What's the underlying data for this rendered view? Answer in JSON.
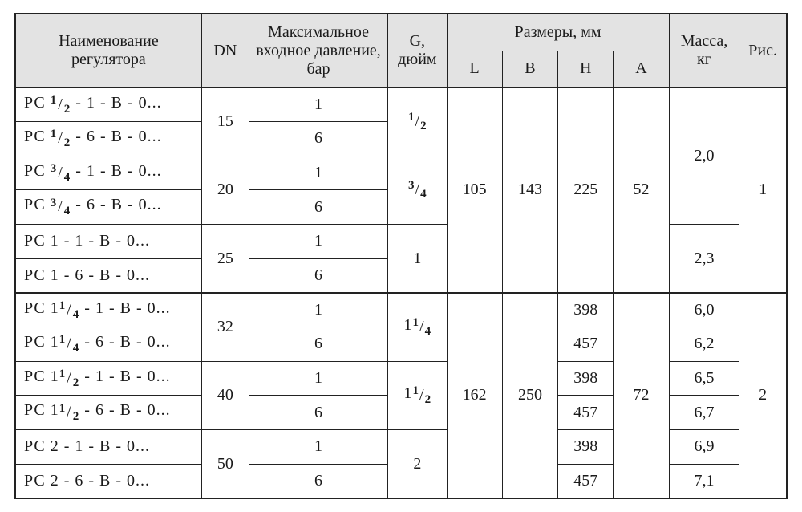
{
  "header": {
    "name": "Наименование регулятора",
    "dn": "DN",
    "pmax": "Максимальное входное давление, бар",
    "g": "G, дюйм",
    "dims_group": "Размеры, мм",
    "L": "L",
    "B": "B",
    "H": "H",
    "A": "A",
    "mass": "Масса, кг",
    "fig": "Рис."
  },
  "style": {
    "header_bg": "#e3e3e3",
    "border_color": "#222222",
    "font_family": "Times New Roman",
    "base_font_size_pt": 15
  },
  "group1": {
    "L": "105",
    "B": "143",
    "H": "225",
    "A": "52",
    "fig": "1",
    "mass_a": "2,0",
    "mass_b": "2,3",
    "rows": [
      {
        "name_html": "РС <frac>1/2</frac> - 1 - В - 0...",
        "pmax": "1"
      },
      {
        "name_html": "РС <frac>1/2</frac> - 6 - В - 0...",
        "pmax": "6"
      },
      {
        "name_html": "РС <frac>3/4</frac> - 1 - В - 0...",
        "pmax": "1"
      },
      {
        "name_html": "РС <frac>3/4</frac> - 6 - В - 0...",
        "pmax": "6"
      },
      {
        "name_html": "РС 1 - 1 - В - 0...",
        "pmax": "1"
      },
      {
        "name_html": "РС 1 - 6 - В - 0...",
        "pmax": "6"
      }
    ],
    "dn": [
      "15",
      "20",
      "25"
    ],
    "g": [
      "1/2",
      "3/4",
      "1"
    ]
  },
  "group2": {
    "L": "162",
    "B": "250",
    "A": "72",
    "fig": "2",
    "rows": [
      {
        "name_html": "РС 1<frac>1/4</frac> - 1 - В - 0...",
        "pmax": "1",
        "H": "398",
        "mass": "6,0"
      },
      {
        "name_html": "РС 1<frac>1/4</frac> - 6 - В - 0...",
        "pmax": "6",
        "H": "457",
        "mass": "6,2"
      },
      {
        "name_html": "РС 1<frac>1/2</frac> - 1 - В - 0...",
        "pmax": "1",
        "H": "398",
        "mass": "6,5"
      },
      {
        "name_html": "РС 1<frac>1/2</frac> - 6 - В - 0...",
        "pmax": "6",
        "H": "457",
        "mass": "6,7"
      },
      {
        "name_html": "РС 2 - 1 - В - 0...",
        "pmax": "1",
        "H": "398",
        "mass": "6,9"
      },
      {
        "name_html": "РС 2 - 6 - В - 0...",
        "pmax": "6",
        "H": "457",
        "mass": "7,1"
      }
    ],
    "dn": [
      "32",
      "40",
      "50"
    ],
    "g": [
      "1 1/4",
      "1 1/2",
      "2"
    ]
  }
}
